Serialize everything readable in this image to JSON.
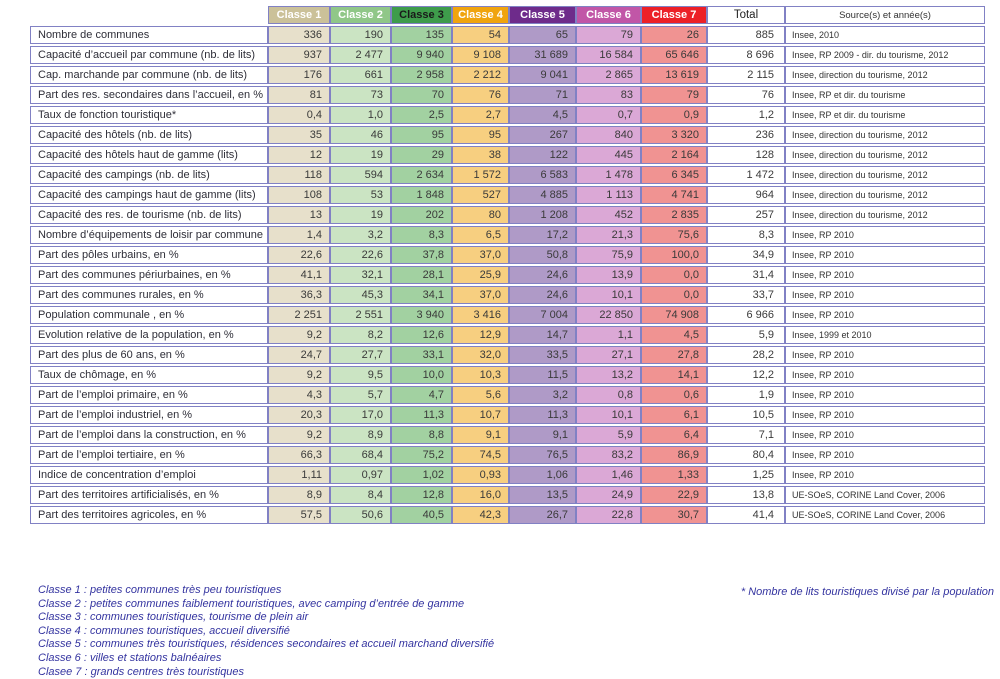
{
  "colors": {
    "border": "#8181C4",
    "text": "#333333",
    "footer_text": "#3434A0"
  },
  "table": {
    "columns": [
      {
        "id": "c1",
        "label": "Classe 1",
        "header_bg": "#CBC199",
        "header_color": "#FFFFFF",
        "cell_bg": "#E7E0CB"
      },
      {
        "id": "c2",
        "label": "Classe 2",
        "header_bg": "#90C788",
        "header_color": "#FFFFFF",
        "cell_bg": "#CBE4C3"
      },
      {
        "id": "c3",
        "label": "Classe 3",
        "header_bg": "#3E9C4B",
        "header_color": "#1A1A1A",
        "cell_bg": "#A2D1A1"
      },
      {
        "id": "c4",
        "label": "Classe 4",
        "header_bg": "#F0A40E",
        "header_color": "#FFFFFF",
        "cell_bg": "#F7CF80"
      },
      {
        "id": "c5",
        "label": "Classe 5",
        "header_bg": "#6E2B8B",
        "header_color": "#FFFFFF",
        "cell_bg": "#AF9AC7"
      },
      {
        "id": "c6",
        "label": "Classe 6",
        "header_bg": "#C156A7",
        "header_color": "#FFFFFF",
        "cell_bg": "#DBA8D6"
      },
      {
        "id": "c7",
        "label": "Classe 7",
        "header_bg": "#EC2027",
        "header_color": "#FFFFFF",
        "cell_bg": "#F09392"
      }
    ],
    "total_header": "Total",
    "source_header": "Source(s) et année(s)",
    "rows": [
      {
        "label": "Nombre de communes",
        "values": [
          "336",
          "190",
          "135",
          "54",
          "65",
          "79",
          "26"
        ],
        "total": "885",
        "source": "Insee, 2010"
      },
      {
        "label": "Capacité d’accueil par commune (nb. de lits)",
        "values": [
          "937",
          "2 477",
          "9 940",
          "9 108",
          "31 689",
          "16 584",
          "65 646"
        ],
        "total": "8 696",
        "source": "Insee, RP 2009 - dir. du tourisme, 2012"
      },
      {
        "label": "Cap. marchande par commune (nb. de lits)",
        "values": [
          "176",
          "661",
          "2 958",
          "2 212",
          "9 041",
          "2 865",
          "13 619"
        ],
        "total": "2 115",
        "source": "Insee, direction du tourisme, 2012"
      },
      {
        "label": "Part des res. secondaires dans l’accueil, en %",
        "values": [
          "81",
          "73",
          "70",
          "76",
          "71",
          "83",
          "79"
        ],
        "total": "76",
        "source": "Insee, RP et dir. du tourisme"
      },
      {
        "label": "Taux de fonction touristique*",
        "values": [
          "0,4",
          "1,0",
          "2,5",
          "2,7",
          "4,5",
          "0,7",
          "0,9"
        ],
        "total": "1,2",
        "source": "Insee, RP et dir. du tourisme"
      },
      {
        "label": "Capacité des hôtels (nb. de lits)",
        "values": [
          "35",
          "46",
          "95",
          "95",
          "267",
          "840",
          "3 320"
        ],
        "total": "236",
        "source": "Insee, direction du tourisme, 2012"
      },
      {
        "label": "Capacité des hôtels haut de gamme (lits)",
        "values": [
          "12",
          "19",
          "29",
          "38",
          "122",
          "445",
          "2 164"
        ],
        "total": "128",
        "source": "Insee, direction du tourisme, 2012"
      },
      {
        "label": "Capacité des campings (nb. de lits)",
        "values": [
          "118",
          "594",
          "2 634",
          "1 572",
          "6 583",
          "1 478",
          "6 345"
        ],
        "total": "1 472",
        "source": "Insee, direction du tourisme, 2012"
      },
      {
        "label": "Capacité des campings haut de gamme (lits)",
        "values": [
          "108",
          "53",
          "1 848",
          "527",
          "4 885",
          "1 113",
          "4 741"
        ],
        "total": "964",
        "source": "Insee, direction du tourisme, 2012"
      },
      {
        "label": "Capacité des res. de tourisme (nb. de lits)",
        "values": [
          "13",
          "19",
          "202",
          "80",
          "1 208",
          "452",
          "2 835"
        ],
        "total": "257",
        "source": "Insee, direction du tourisme, 2012"
      },
      {
        "label": "Nombre d’équipements de loisir par commune",
        "values": [
          "1,4",
          "3,2",
          "8,3",
          "6,5",
          "17,2",
          "21,3",
          "75,6"
        ],
        "total": "8,3",
        "source": "Insee, RP 2010"
      },
      {
        "label": "Part des pôles urbains, en %",
        "values": [
          "22,6",
          "22,6",
          "37,8",
          "37,0",
          "50,8",
          "75,9",
          "100,0"
        ],
        "total": "34,9",
        "source": "Insee, RP 2010"
      },
      {
        "label": "Part des communes périurbaines, en %",
        "values": [
          "41,1",
          "32,1",
          "28,1",
          "25,9",
          "24,6",
          "13,9",
          "0,0"
        ],
        "total": "31,4",
        "source": "Insee, RP 2010"
      },
      {
        "label": "Part des communes rurales, en %",
        "values": [
          "36,3",
          "45,3",
          "34,1",
          "37,0",
          "24,6",
          "10,1",
          "0,0"
        ],
        "total": "33,7",
        "source": "Insee, RP 2010"
      },
      {
        "label": "Population communale , en %",
        "values": [
          "2 251",
          "2 551",
          "3 940",
          "3 416",
          "7 004",
          "22 850",
          "74 908"
        ],
        "total": "6 966",
        "source": "Insee, RP 2010"
      },
      {
        "label": "Evolution relative de la population, en %",
        "values": [
          "9,2",
          "8,2",
          "12,6",
          "12,9",
          "14,7",
          "1,1",
          "4,5"
        ],
        "total": "5,9",
        "source": "Insee, 1999 et 2010"
      },
      {
        "label": "Part des plus de 60 ans, en %",
        "values": [
          "24,7",
          "27,7",
          "33,1",
          "32,0",
          "33,5",
          "27,1",
          "27,8"
        ],
        "total": "28,2",
        "source": "Insee, RP 2010"
      },
      {
        "label": "Taux de chômage, en %",
        "values": [
          "9,2",
          "9,5",
          "10,0",
          "10,3",
          "11,5",
          "13,2",
          "14,1"
        ],
        "total": "12,2",
        "source": "Insee, RP 2010"
      },
      {
        "label": "Part de l’emploi primaire, en %",
        "values": [
          "4,3",
          "5,7",
          "4,7",
          "5,6",
          "3,2",
          "0,8",
          "0,6"
        ],
        "total": "1,9",
        "source": "Insee, RP 2010"
      },
      {
        "label": "Part de l’emploi industriel, en %",
        "values": [
          "20,3",
          "17,0",
          "11,3",
          "10,7",
          "11,3",
          "10,1",
          "6,1"
        ],
        "total": "10,5",
        "source": "Insee, RP 2010"
      },
      {
        "label": "Part de l’emploi dans la construction, en %",
        "values": [
          "9,2",
          "8,9",
          "8,8",
          "9,1",
          "9,1",
          "5,9",
          "6,4"
        ],
        "total": "7,1",
        "source": "Insee, RP 2010"
      },
      {
        "label": "Part de l’emploi tertiaire, en %",
        "values": [
          "66,3",
          "68,4",
          "75,2",
          "74,5",
          "76,5",
          "83,2",
          "86,9"
        ],
        "total": "80,4",
        "source": "Insee, RP 2010"
      },
      {
        "label": "Indice de concentration d’emploi",
        "values": [
          "1,11",
          "0,97",
          "1,02",
          "0,93",
          "1,06",
          "1,46",
          "1,33"
        ],
        "total": "1,25",
        "source": "Insee, RP 2010"
      },
      {
        "label": "Part des territoires artificialisés, en %",
        "values": [
          "8,9",
          "8,4",
          "12,8",
          "16,0",
          "13,5",
          "24,9",
          "22,9"
        ],
        "total": "13,8",
        "source": "UE-SOeS, CORINE Land Cover, 2006"
      },
      {
        "label": "Part des territoires agricoles, en %",
        "values": [
          "57,5",
          "50,6",
          "40,5",
          "42,3",
          "26,7",
          "22,8",
          "30,7"
        ],
        "total": "41,4",
        "source": "UE-SOeS, CORINE Land Cover, 2006"
      }
    ]
  },
  "legend": {
    "items": [
      "Classe 1 : petites communes très peu touristiques",
      "Classe 2 : petites communes faiblement touristiques, avec camping d’entrée de gamme",
      "Classe 3 : communes touristiques, tourisme de plein air",
      "Classe 4 : communes touristiques, accueil diversifié",
      "Classe 5 : communes très touristiques, résidences secondaires et accueil marchand diversifié",
      "Classe 6 : villes et stations balnéaires",
      "Clasee 7 : grands centres très touristiques"
    ]
  },
  "footnote": "* Nombre de lits touristiques divisé par la population"
}
